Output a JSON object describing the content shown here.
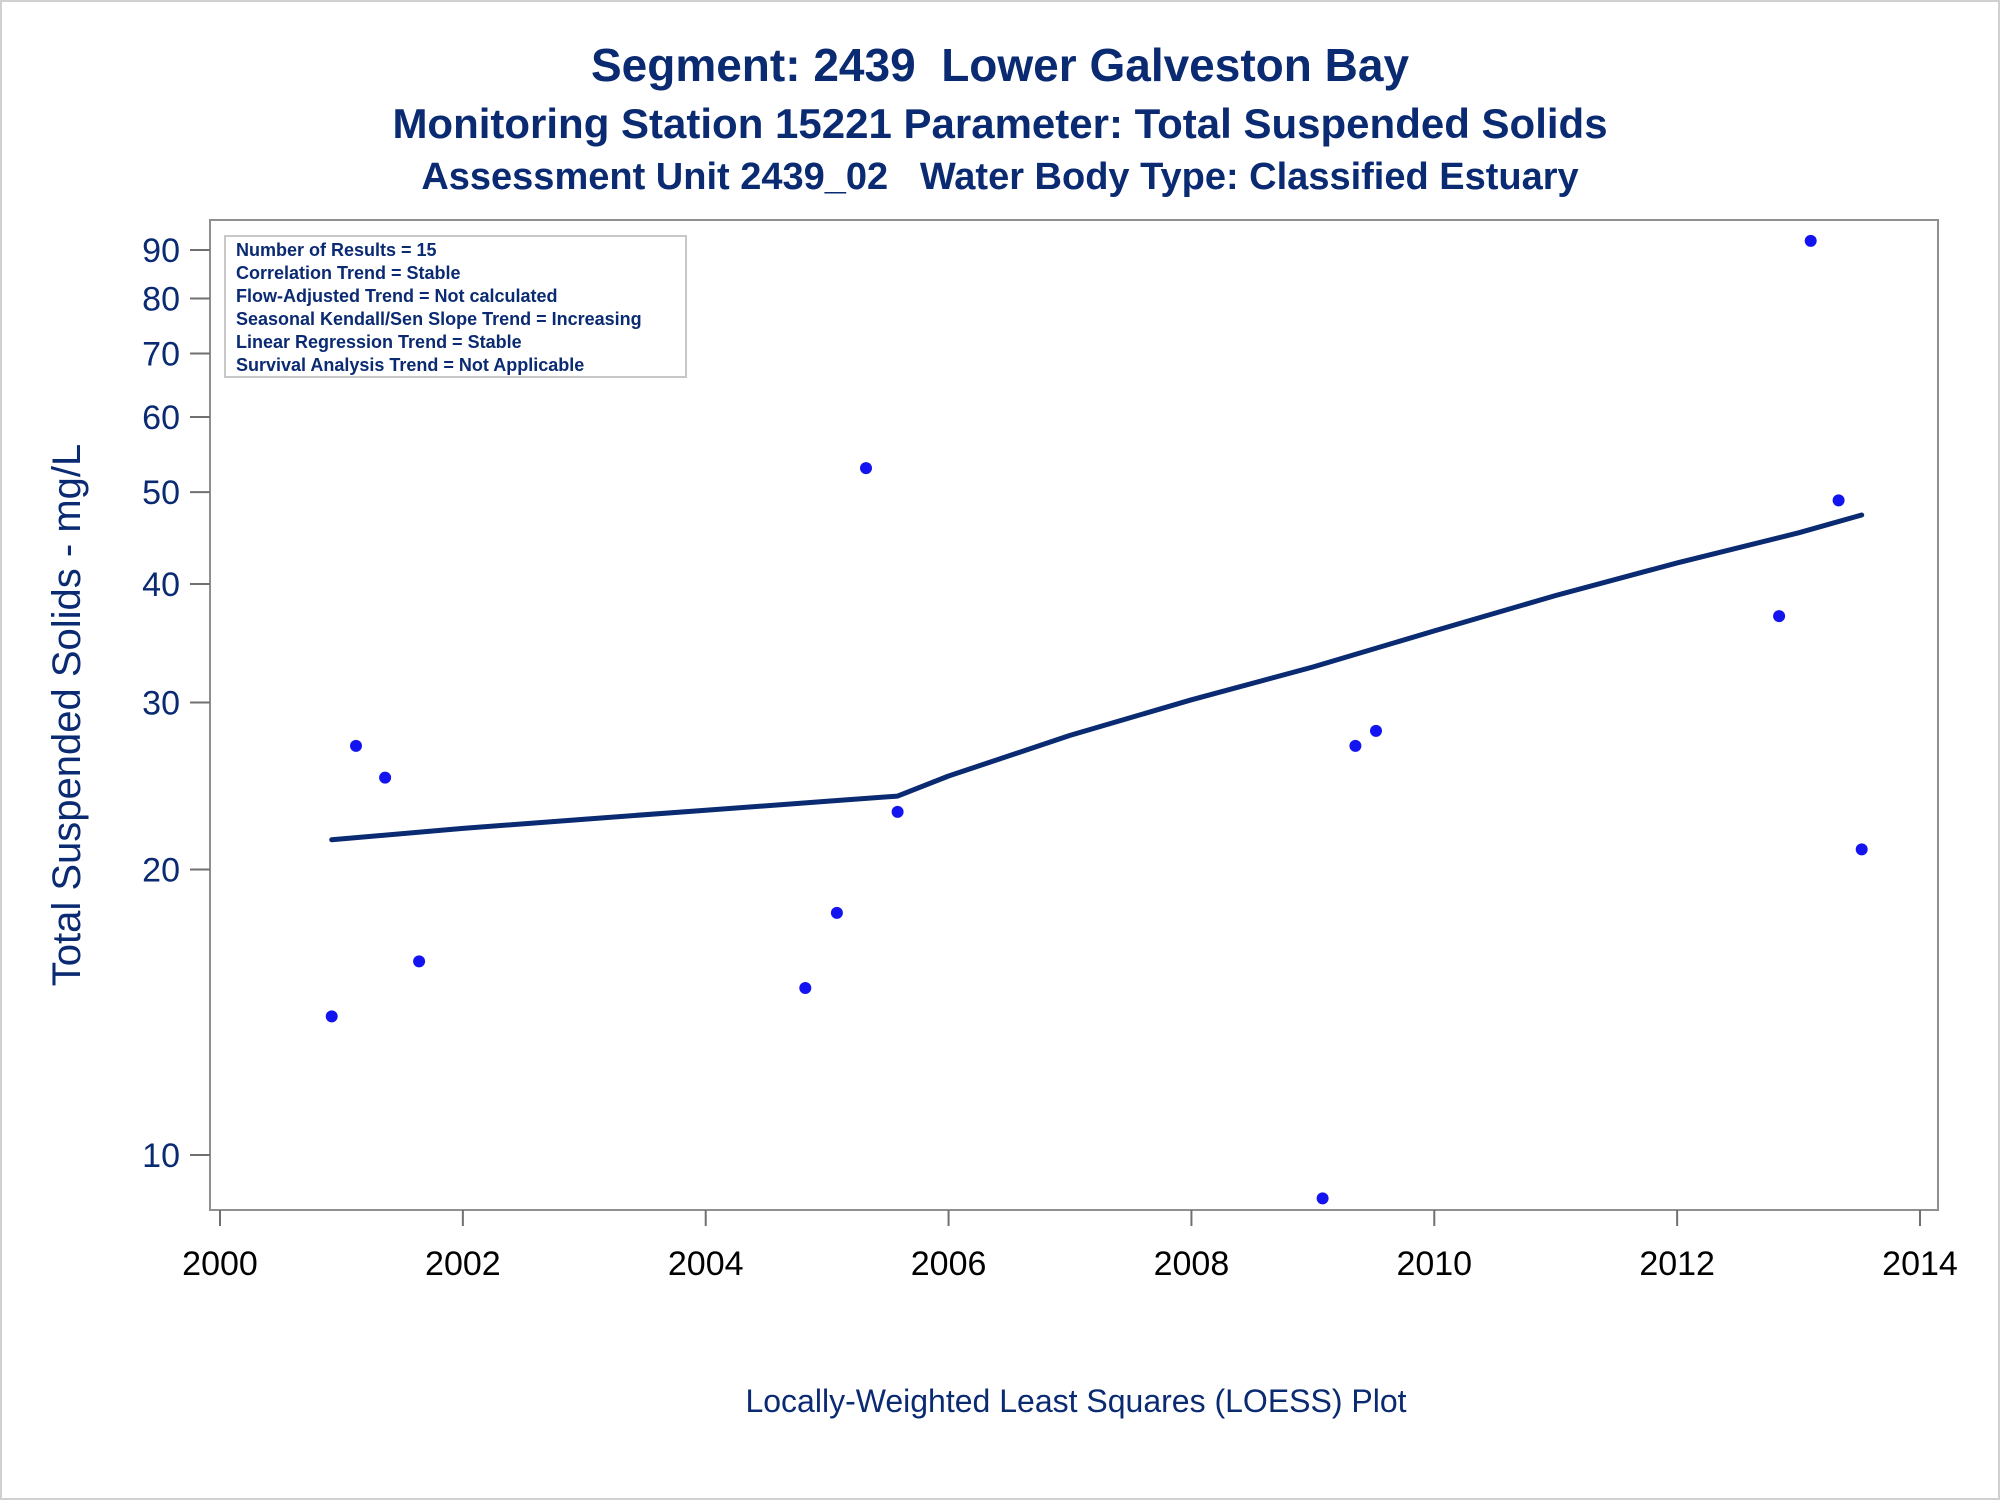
{
  "chart_data": {
    "type": "scatter",
    "title": "Segment: 2439  Lower Galveston Bay",
    "subtitle": "Monitoring Station 15221 Parameter: Total Suspended Solids",
    "subtitle2": "Assessment Unit 2439_02   Water Body Type: Classified Estuary",
    "xlabel": "",
    "ylabel": "Total Suspended Solids - mg/L",
    "footnote": "Locally-Weighted Least Squares (LOESS) Plot",
    "xlim": [
      2000,
      2014
    ],
    "ylim": [
      9,
      96
    ],
    "yscale": "log",
    "x_ticks": [
      "2000",
      "2002",
      "2004",
      "2006",
      "2008",
      "2010",
      "2012",
      "2014"
    ],
    "y_ticks": [
      {
        "value": 10,
        "label": "10"
      },
      {
        "value": 20,
        "label": "20"
      },
      {
        "value": 30,
        "label": "30"
      },
      {
        "value": 40,
        "label": "40"
      },
      {
        "value": 50,
        "label": "50"
      },
      {
        "value": 60,
        "label": "60"
      },
      {
        "value": 70,
        "label": "70"
      },
      {
        "value": 80,
        "label": "80"
      },
      {
        "value": 90,
        "label": "90"
      }
    ],
    "grid": false,
    "stats_box": {
      "placement": "top-left",
      "lines": [
        "Number of Results = 15",
        "Correlation Trend = Stable",
        "Flow-Adjusted Trend = Not calculated",
        "Seasonal Kendall/Sen Slope Trend = Increasing",
        "Linear Regression Trend = Stable",
        "Survival Analysis Trend = Not Applicable"
      ]
    },
    "points": {
      "color": "#1414f0",
      "x": [
        2000.92,
        2001.12,
        2001.36,
        2001.64,
        2004.82,
        2005.08,
        2005.32,
        2005.58,
        2009.08,
        2009.35,
        2009.52,
        2012.84,
        2013.1,
        2013.33,
        2013.52
      ],
      "y": [
        14,
        27,
        25,
        16,
        15,
        18,
        53,
        23,
        9,
        27,
        28,
        37,
        92,
        49,
        21
      ]
    },
    "loess_line": {
      "color": "#0a2a72",
      "x": [
        2000.92,
        2002.0,
        2003.0,
        2004.0,
        2005.0,
        2005.58,
        2006.0,
        2007.0,
        2008.0,
        2009.0,
        2010.0,
        2011.0,
        2012.0,
        2013.0,
        2013.52
      ],
      "y": [
        21.5,
        22.1,
        22.6,
        23.1,
        23.6,
        23.9,
        25.1,
        27.7,
        30.2,
        32.7,
        35.7,
        38.9,
        42.1,
        45.3,
        47.3
      ]
    }
  }
}
